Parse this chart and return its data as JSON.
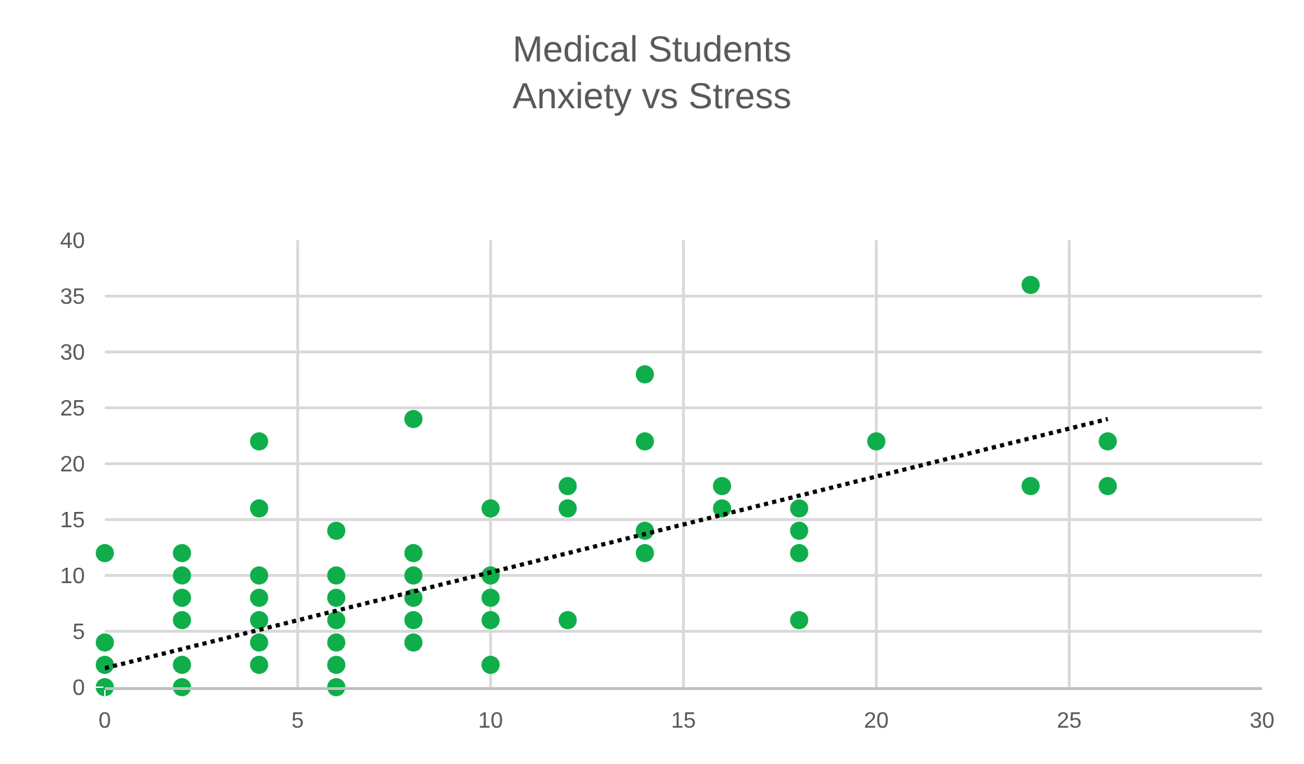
{
  "chart_data": {
    "type": "scatter",
    "title": "Medical Students\nAnxiety vs Stress",
    "series": [
      {
        "color": "#0fae4a",
        "marker": "circle",
        "x": [
          0,
          0,
          0,
          0,
          2,
          2,
          2,
          2,
          2,
          2,
          4,
          4,
          4,
          4,
          4,
          4,
          4,
          6,
          6,
          6,
          6,
          6,
          6,
          6,
          8,
          8,
          8,
          8,
          8,
          8,
          10,
          10,
          10,
          10,
          10,
          12,
          12,
          12,
          14,
          14,
          14,
          14,
          16,
          16,
          18,
          18,
          18,
          18,
          20,
          24,
          24,
          26,
          26
        ],
        "values": [
          0,
          2,
          4,
          12,
          0,
          2,
          6,
          8,
          10,
          12,
          2,
          4,
          6,
          8,
          10,
          16,
          22,
          0,
          2,
          4,
          6,
          8,
          10,
          14,
          4,
          6,
          8,
          10,
          12,
          24,
          2,
          6,
          8,
          10,
          16,
          6,
          16,
          18,
          12,
          14,
          22,
          28,
          16,
          18,
          6,
          12,
          14,
          16,
          22,
          18,
          36,
          18,
          22
        ]
      },
      {
        "type": "line",
        "color": "#000000",
        "line_style": "dotted",
        "marker": "none",
        "x": [
          0,
          26
        ],
        "values": [
          1.7,
          24
        ]
      }
    ],
    "xlim": [
      0,
      30
    ],
    "xticks": [
      0,
      5,
      10,
      15,
      20,
      25,
      30
    ],
    "ylim": [
      0,
      40
    ],
    "yticks": [
      0,
      5,
      10,
      15,
      20,
      25,
      30,
      35,
      40
    ],
    "grid": true
  }
}
